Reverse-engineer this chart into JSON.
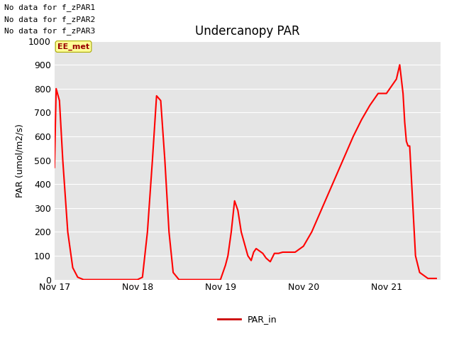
{
  "title": "Undercanopy PAR",
  "ylabel": "PAR (umol/m2/s)",
  "ylim": [
    0,
    1000
  ],
  "yticks": [
    0,
    100,
    200,
    300,
    400,
    500,
    600,
    700,
    800,
    900,
    1000
  ],
  "line_color": "#FF0000",
  "line_width": 1.5,
  "bg_color": "#E5E5E5",
  "legend_label": "PAR_in",
  "legend_color": "#CC0000",
  "annotations": [
    "No data for f_zPAR1",
    "No data for f_zPAR2",
    "No data for f_zPAR3"
  ],
  "tooltip_text": "EE_met",
  "x_data": [
    0.0,
    0.02,
    0.06,
    0.1,
    0.16,
    0.22,
    0.28,
    0.35,
    0.42,
    0.5,
    0.58,
    0.95,
    1.0,
    1.06,
    1.12,
    1.18,
    1.23,
    1.28,
    1.33,
    1.38,
    1.43,
    1.5,
    1.95,
    2.0,
    2.03,
    2.06,
    2.09,
    2.13,
    2.17,
    2.21,
    2.25,
    2.29,
    2.33,
    2.37,
    2.4,
    2.43,
    2.47,
    2.51,
    2.51,
    2.55,
    2.6,
    2.65,
    2.7,
    2.7,
    2.75,
    2.8,
    2.85,
    2.9,
    2.9,
    3.0,
    3.1,
    3.2,
    3.3,
    3.4,
    3.5,
    3.6,
    3.7,
    3.8,
    3.9,
    3.95,
    4.0,
    4.02,
    4.04,
    4.06,
    4.08,
    4.1,
    4.12,
    4.16,
    4.2,
    4.2,
    4.22,
    4.24,
    4.26,
    4.28,
    4.3,
    4.35,
    4.4,
    4.5,
    4.6,
    4.6
  ],
  "y_data": [
    470,
    800,
    750,
    500,
    200,
    50,
    10,
    0,
    0,
    0,
    0,
    0,
    0,
    10,
    200,
    500,
    770,
    750,
    500,
    200,
    30,
    0,
    0,
    0,
    30,
    60,
    100,
    200,
    330,
    290,
    200,
    150,
    100,
    80,
    115,
    130,
    120,
    110,
    110,
    90,
    75,
    110,
    110,
    110,
    115,
    115,
    115,
    115,
    115,
    140,
    200,
    280,
    360,
    440,
    520,
    600,
    670,
    730,
    780,
    780,
    780,
    790,
    800,
    810,
    820,
    830,
    840,
    900,
    780,
    780,
    660,
    580,
    560,
    560,
    430,
    100,
    30,
    5,
    5,
    5
  ],
  "xlim": [
    0.0,
    4.65
  ],
  "xtick_positions": [
    0,
    1,
    2,
    3,
    4
  ],
  "xtick_labels": [
    "Nov 17",
    "Nov 18",
    "Nov 19",
    "Nov 20",
    "Nov 21"
  ]
}
